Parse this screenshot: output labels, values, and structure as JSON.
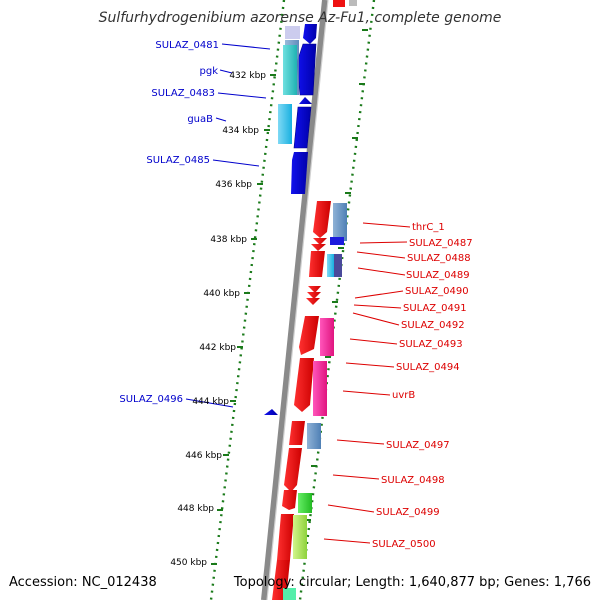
{
  "title": "Sulfurhydrogenibium azorense Az-Fu1, complete genome",
  "accession_text": "Accession: NC_012438",
  "summary_text": "Topology: circular; Length: 1,640,877 bp; Genes: 1,766",
  "colors": {
    "backbone": "#8a8a8a",
    "ruler": "#1a7a1a",
    "forward_label": "#0000cc",
    "reverse_label": "#dd0000"
  },
  "ruler_ticks": [
    "432 kbp",
    "434 kbp",
    "436 kbp",
    "438 kbp",
    "440 kbp",
    "442 kbp",
    "444 kbp",
    "446 kbp",
    "448 kbp",
    "450 kbp"
  ],
  "labels": {
    "forward": [
      "SULAZ_0481",
      "pgk",
      "SULAZ_0483",
      "guaB",
      "SULAZ_0485",
      "SULAZ_0496"
    ],
    "reverse": [
      "thrC_1",
      "SULAZ_0487",
      "SULAZ_0488",
      "SULAZ_0489",
      "SULAZ_0490",
      "SULAZ_0491",
      "SULAZ_0492",
      "SULAZ_0493",
      "SULAZ_0494",
      "uvrB",
      "SULAZ_0497",
      "SULAZ_0498",
      "SULAZ_0499",
      "SULAZ_0500"
    ]
  }
}
